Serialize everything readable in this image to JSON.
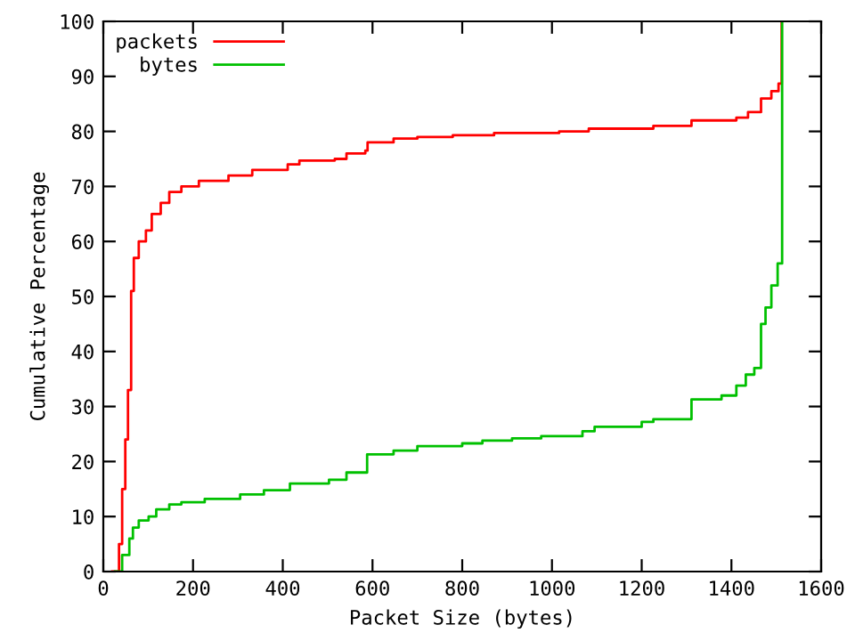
{
  "chart_data": {
    "type": "step",
    "xlabel": "Packet Size (bytes)",
    "ylabel": "Cumulative Percentage",
    "xlim": [
      0,
      1600
    ],
    "ylim": [
      0,
      100
    ],
    "xticks": [
      0,
      200,
      400,
      600,
      800,
      1000,
      1200,
      1400,
      1600
    ],
    "yticks": [
      0,
      10,
      20,
      30,
      40,
      50,
      60,
      70,
      80,
      90,
      100
    ],
    "grid": false,
    "legend": "top left",
    "series": [
      {
        "name": "packets",
        "color": "#ff0000",
        "x": [
          20,
          35,
          42,
          49,
          55,
          62,
          68,
          79,
          95,
          108,
          128,
          147,
          174,
          213,
          279,
          332,
          411,
          437,
          516,
          542,
          584,
          589,
          647,
          700,
          779,
          871,
          1016,
          1082,
          1226,
          1311,
          1411,
          1437,
          1466,
          1489,
          1505,
          1512
        ],
        "values": [
          0,
          5,
          15,
          24,
          33,
          51,
          57,
          60,
          62,
          65,
          67,
          69,
          70,
          71,
          72,
          73,
          74,
          74.7,
          75,
          76,
          76.5,
          78,
          78.7,
          79,
          79.3,
          79.7,
          80,
          80.5,
          81,
          82,
          82.5,
          83.5,
          86,
          87.3,
          88.7,
          100
        ]
      },
      {
        "name": "bytes",
        "color": "#00c000",
        "x": [
          26,
          42,
          58,
          66,
          79,
          101,
          118,
          147,
          174,
          226,
          305,
          358,
          416,
          503,
          542,
          588,
          647,
          700,
          800,
          845,
          911,
          976,
          1068,
          1095,
          1200,
          1226,
          1311,
          1378,
          1411,
          1432,
          1451,
          1466,
          1476,
          1489,
          1503,
          1513
        ],
        "values": [
          0,
          3,
          6,
          8,
          9.3,
          10,
          11.3,
          12.2,
          12.6,
          13.2,
          14,
          14.8,
          16,
          16.7,
          18,
          21.3,
          22,
          22.8,
          23.3,
          23.8,
          24.2,
          24.6,
          25.5,
          26.3,
          27.2,
          27.7,
          31.3,
          32,
          33.8,
          35.8,
          37,
          45,
          48,
          52,
          56,
          100
        ]
      }
    ]
  }
}
